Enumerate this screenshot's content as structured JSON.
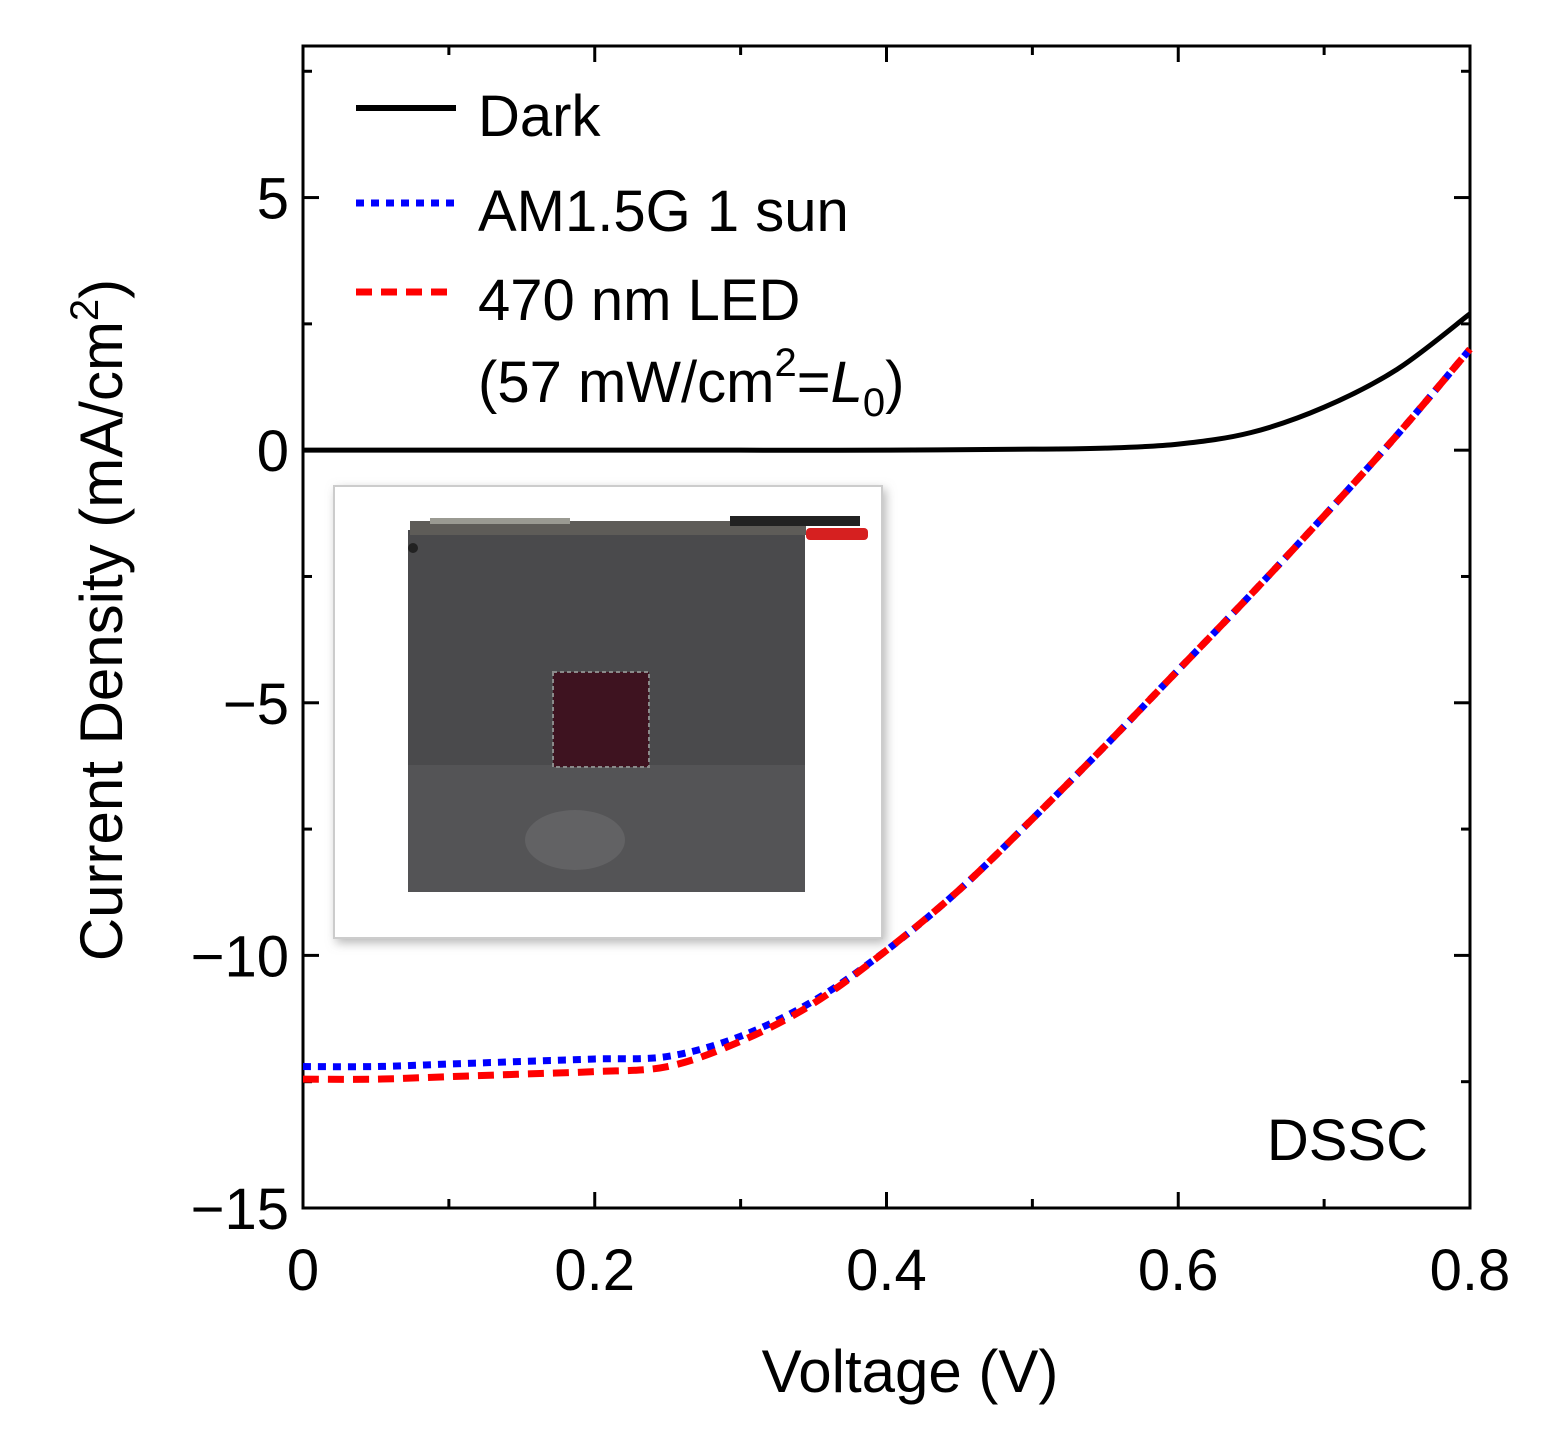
{
  "chart_data": {
    "type": "line",
    "title": "",
    "xlabel": "Voltage (V)",
    "ylabel": "Current Density (mA/cm",
    "ylabel_sup": "2",
    "ylabel_end": ")",
    "xlim": [
      0,
      0.8
    ],
    "ylim": [
      -15,
      8
    ],
    "x_ticks": [
      0,
      0.2,
      0.4,
      0.6,
      0.8
    ],
    "x_tick_labels": [
      "0",
      "0.2",
      "0.4",
      "0.6",
      "0.8"
    ],
    "x_minor_ticks": [
      0.1,
      0.3,
      0.5,
      0.7
    ],
    "y_ticks": [
      5,
      0,
      -5,
      -10,
      -15
    ],
    "y_tick_labels": [
      "5",
      "0",
      "−5",
      "−10",
      "−15"
    ],
    "y_minor_ticks": [
      7.5,
      2.5,
      -2.5,
      -7.5,
      -12.5
    ],
    "grid": false,
    "legend_position": "top-left",
    "series": [
      {
        "name": "Dark",
        "color": "#000000",
        "style": "solid",
        "x": [
          0,
          0.1,
          0.2,
          0.3,
          0.4,
          0.5,
          0.55,
          0.6,
          0.65,
          0.7,
          0.75,
          0.8
        ],
        "y": [
          0,
          0,
          0,
          0,
          0,
          0.02,
          0.04,
          0.12,
          0.35,
          0.85,
          1.6,
          2.7
        ]
      },
      {
        "name": "AM1.5G 1 sun",
        "color": "#0000ff",
        "style": "dotted",
        "x": [
          0,
          0.05,
          0.1,
          0.15,
          0.2,
          0.25,
          0.3,
          0.35,
          0.4,
          0.45,
          0.5,
          0.55,
          0.6,
          0.65,
          0.7,
          0.75,
          0.8
        ],
        "y": [
          -12.2,
          -12.2,
          -12.15,
          -12.1,
          -12.05,
          -12.0,
          -11.6,
          -10.9,
          -9.9,
          -8.7,
          -7.3,
          -5.85,
          -4.35,
          -2.85,
          -1.3,
          0.3,
          2.0
        ]
      },
      {
        "name": "470 nm LED",
        "color": "#ff0000",
        "style": "dashed",
        "x": [
          0,
          0.05,
          0.1,
          0.15,
          0.2,
          0.25,
          0.3,
          0.35,
          0.4,
          0.45,
          0.5,
          0.55,
          0.6,
          0.65,
          0.7,
          0.75,
          0.8
        ],
        "y": [
          -12.45,
          -12.45,
          -12.4,
          -12.35,
          -12.3,
          -12.2,
          -11.7,
          -10.95,
          -9.9,
          -8.7,
          -7.3,
          -5.85,
          -4.35,
          -2.85,
          -1.3,
          0.3,
          2.0
        ]
      }
    ],
    "legend": {
      "entries": [
        "Dark",
        "AM1.5G 1 sun",
        "470 nm LED"
      ],
      "note_prefix": "(57 mW/cm",
      "note_sup": "2",
      "note_eq": "=",
      "note_var": "L",
      "note_sub": "0",
      "note_suffix": ")"
    },
    "annotation": "DSSC"
  },
  "inset": {
    "description_icon": "dssc-photo-icon",
    "frame_color": "#cccccc",
    "panel_color": "#4a4a4c",
    "cell_color": "#3e1320"
  }
}
